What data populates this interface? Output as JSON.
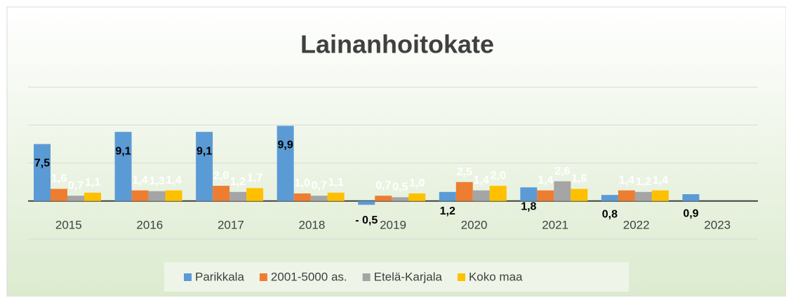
{
  "chart_data": {
    "type": "bar",
    "title": "Lainanhoitokate",
    "categories": [
      "2015",
      "2016",
      "2017",
      "2018",
      "2019",
      "2020",
      "2021",
      "2022",
      "2023"
    ],
    "series": [
      {
        "name": "Parikkala",
        "color": "#5b9bd5",
        "values": [
          7.5,
          9.1,
          9.1,
          9.9,
          -0.5,
          1.2,
          1.8,
          0.8,
          0.9
        ],
        "value_labels": [
          "7,5",
          "9,1",
          "9,1",
          "9,9",
          "- 0,5",
          "1,2",
          "1,8",
          "0,8",
          "0,9"
        ]
      },
      {
        "name": "2001-5000 as.",
        "color": "#ed7d31",
        "values": [
          1.6,
          1.4,
          2.0,
          1.0,
          0.7,
          2.5,
          1.4,
          1.4,
          null
        ],
        "value_labels": [
          "1,6",
          "1,4",
          "2,0",
          "1,0",
          "0,7",
          "2,5",
          "1,4",
          "1,4",
          null
        ]
      },
      {
        "name": "Etelä-Karjala",
        "color": "#a5a5a5",
        "values": [
          0.7,
          1.3,
          1.2,
          0.7,
          0.5,
          1.4,
          2.6,
          1.2,
          null
        ],
        "value_labels": [
          "0,7",
          "1,3",
          "1,2",
          "0,7",
          "0,5",
          "1,4",
          "2,6",
          "1,2",
          null
        ]
      },
      {
        "name": "Koko maa",
        "color": "#ffc000",
        "values": [
          1.1,
          1.4,
          1.7,
          1.1,
          1.0,
          2.0,
          1.6,
          1.4,
          null
        ],
        "value_labels": [
          "1,1",
          "1,4",
          "1,7",
          "1,1",
          "1,0",
          "2,0",
          "1,6",
          "1,4",
          null
        ]
      }
    ],
    "ylim": [
      -5,
      20
    ],
    "yticks": [
      -5,
      0,
      5,
      10,
      15
    ],
    "grid": true,
    "legend": "bottom"
  }
}
